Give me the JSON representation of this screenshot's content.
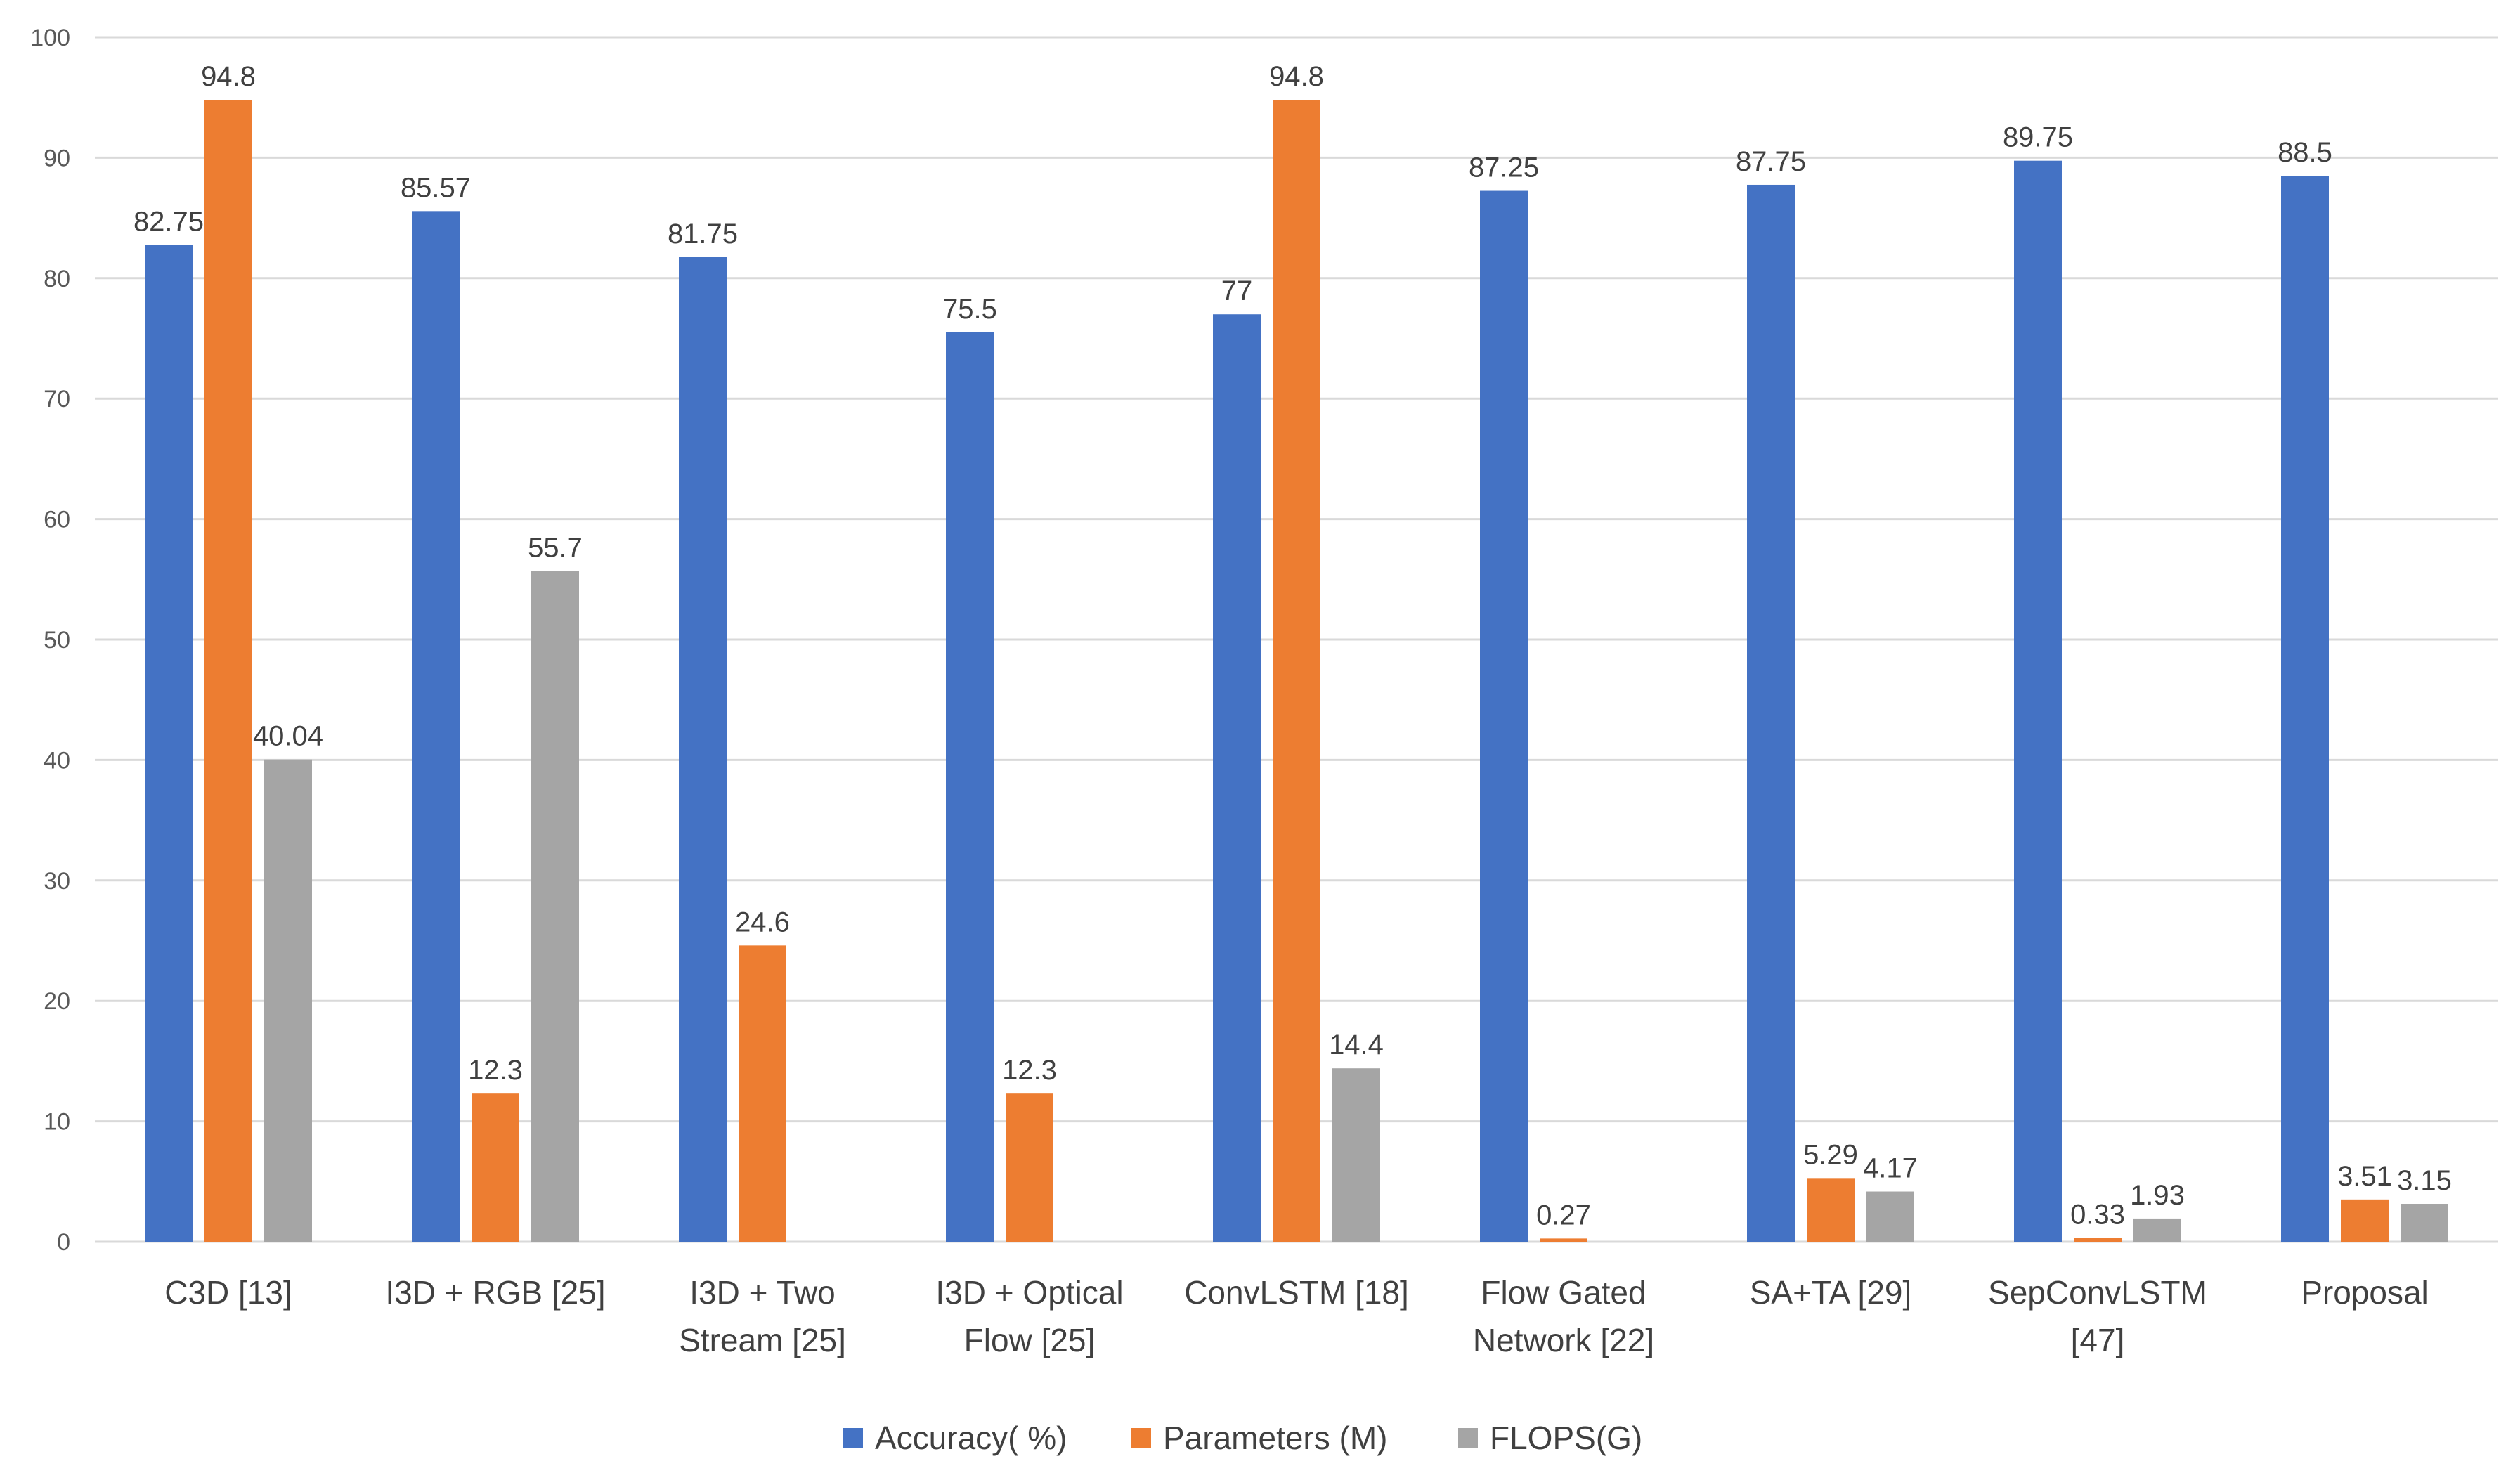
{
  "chart_data": {
    "type": "bar",
    "title": "",
    "xlabel": "",
    "ylabel": "",
    "ylim": [
      0,
      100
    ],
    "yticks": [
      "0",
      "10",
      "20",
      "30",
      "40",
      "50",
      "60",
      "70",
      "80",
      "90",
      "100"
    ],
    "categories": [
      [
        "C3D [13]"
      ],
      [
        "I3D + RGB [25]"
      ],
      [
        "I3D + Two",
        "Stream [25]"
      ],
      [
        "I3D + Optical",
        "Flow [25]"
      ],
      [
        "ConvLSTM [18]"
      ],
      [
        "Flow Gated",
        "Network [22]"
      ],
      [
        "SA+TA [29]"
      ],
      [
        "SepConvLSTM",
        "[47]"
      ],
      [
        "Proposal"
      ]
    ],
    "series": [
      {
        "name": "Accuracy( %)",
        "color": "#4472C4",
        "values": [
          82.75,
          85.57,
          81.75,
          75.5,
          77,
          87.25,
          87.75,
          89.75,
          88.5
        ],
        "labels": [
          "82.75",
          "85.57",
          "81.75",
          "75.5",
          "77",
          "87.25",
          "87.75",
          "89.75",
          "88.5"
        ]
      },
      {
        "name": "Parameters (M)",
        "color": "#ED7D31",
        "values": [
          94.8,
          12.3,
          24.6,
          12.3,
          94.8,
          0.27,
          5.29,
          0.33,
          3.51
        ],
        "labels": [
          "94.8",
          "12.3",
          "24.6",
          "12.3",
          "94.8",
          "0.27",
          "5.29",
          "0.33",
          "3.51"
        ]
      },
      {
        "name": "FLOPS(G)",
        "color": "#A5A5A5",
        "values": [
          40.04,
          55.7,
          null,
          null,
          14.4,
          null,
          4.17,
          1.93,
          3.15
        ],
        "labels": [
          "40.04",
          "55.7",
          null,
          null,
          "14.4",
          null,
          "4.17",
          "1.93",
          "3.15"
        ]
      }
    ],
    "legend": {
      "position": "bottom",
      "entries": [
        "Accuracy( %)",
        "Parameters (M)",
        "FLOPS(G)"
      ]
    },
    "grid": true
  }
}
